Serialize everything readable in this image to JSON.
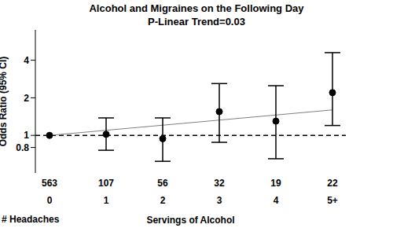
{
  "chart_data": {
    "type": "line",
    "title": "Alcohol and Migraines on the Following Day",
    "subtitle": "P-Linear Trend=0.03",
    "x_label": "Servings of Alcohol",
    "y_label": "Odds Ratio (95% CI)",
    "categories": [
      "0",
      "1",
      "2",
      "3",
      "4",
      "5+"
    ],
    "values": [
      1.0,
      1.02,
      0.94,
      1.55,
      1.3,
      2.2
    ],
    "ci_lower": [
      null,
      0.76,
      0.62,
      0.88,
      0.65,
      1.2
    ],
    "ci_upper": [
      null,
      1.38,
      1.38,
      2.6,
      2.5,
      4.6
    ],
    "color": "#000000",
    "marker": "circle",
    "line_style": "none",
    "trend_line": {
      "values": [
        1.0,
        null,
        null,
        null,
        null,
        1.6
      ],
      "color": "#808080",
      "line_style": "solid"
    },
    "reference_line": {
      "value": 1,
      "color": "#000000",
      "line_style": "dashed"
    },
    "headaches": {
      "label": "# Headaches",
      "values": [
        563,
        107,
        56,
        32,
        19,
        22
      ]
    },
    "log": "y",
    "ylim": [
      0.5,
      7
    ],
    "yticks": [
      0.8,
      1,
      2,
      4
    ],
    "grid": false
  }
}
